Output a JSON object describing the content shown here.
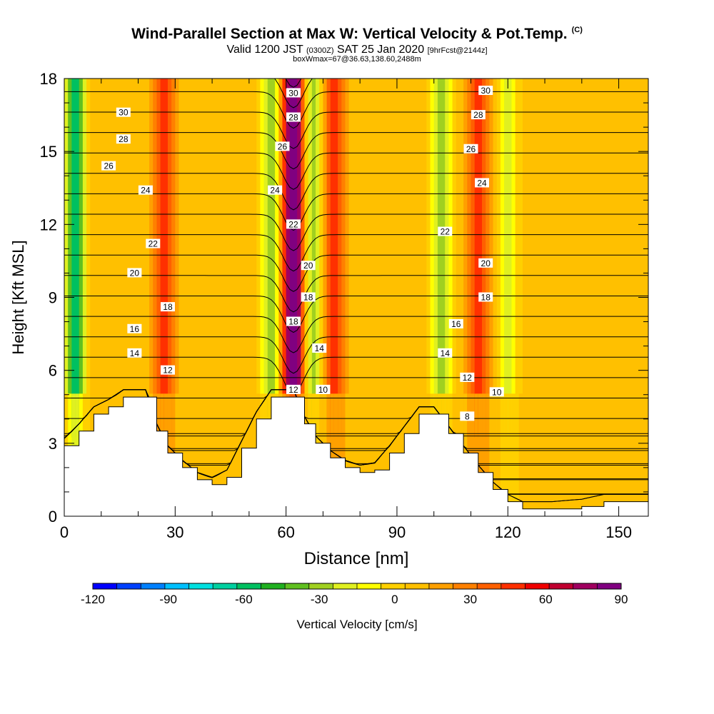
{
  "title": "Wind-Parallel Section at Max W: Vertical Velocity & Pot.Temp.",
  "title_mark": "(C)",
  "subtitle_main_a": "Valid 1200 JST",
  "subtitle_small_a": "(0300Z)",
  "subtitle_main_b": "SAT 25 Jan 2020",
  "subtitle_small_b": "[9hrFcst@2144z]",
  "subtitle2": "boxWmax=67@36.63,138.60,2488m",
  "chart_data": {
    "type": "heatmap",
    "xlabel": "Distance [nm]",
    "ylabel": "Height [Kft MSL]",
    "xlim": [
      0,
      158
    ],
    "ylim": [
      0,
      18
    ],
    "x_ticks": [
      0,
      30,
      60,
      90,
      120,
      150
    ],
    "y_ticks": [
      0,
      3,
      6,
      9,
      12,
      15,
      18
    ],
    "colorbar": {
      "label": "Vertical Velocity [cm/s]",
      "min": -120,
      "max": 90,
      "step": 10,
      "tick_values": [
        -120,
        -90,
        -60,
        -30,
        0,
        30,
        60,
        90
      ],
      "colors": [
        "#0000ff",
        "#0040ff",
        "#0080ff",
        "#00c0ff",
        "#00e0e0",
        "#00d0a0",
        "#00c060",
        "#20b020",
        "#60c020",
        "#a0d020",
        "#e0f020",
        "#ffff00",
        "#ffd000",
        "#ffc000",
        "#ffa000",
        "#ff8000",
        "#ff6000",
        "#ff3000",
        "#f00000",
        "#c00030",
        "#a00060",
        "#800080"
      ]
    },
    "terrain_kft": [
      [
        0,
        2.9
      ],
      [
        4,
        3.5
      ],
      [
        8,
        4.2
      ],
      [
        12,
        4.5
      ],
      [
        16,
        4.9
      ],
      [
        22,
        4.9
      ],
      [
        25,
        3.5
      ],
      [
        28,
        2.6
      ],
      [
        32,
        2.0
      ],
      [
        36,
        1.5
      ],
      [
        40,
        1.3
      ],
      [
        44,
        1.6
      ],
      [
        48,
        2.8
      ],
      [
        52,
        4.0
      ],
      [
        56,
        4.9
      ],
      [
        62,
        4.9
      ],
      [
        65,
        3.8
      ],
      [
        68,
        3.0
      ],
      [
        72,
        2.4
      ],
      [
        76,
        2.0
      ],
      [
        80,
        1.8
      ],
      [
        84,
        1.9
      ],
      [
        88,
        2.6
      ],
      [
        92,
        3.4
      ],
      [
        96,
        4.2
      ],
      [
        100,
        4.2
      ],
      [
        104,
        3.4
      ],
      [
        108,
        2.6
      ],
      [
        112,
        1.8
      ],
      [
        116,
        1.1
      ],
      [
        120,
        0.6
      ],
      [
        124,
        0.3
      ],
      [
        132,
        0.3
      ],
      [
        140,
        0.4
      ],
      [
        146,
        0.6
      ],
      [
        158,
        0.6
      ]
    ],
    "updraft_cores": [
      {
        "x": 27,
        "strength_cms": 40
      },
      {
        "x": 62,
        "strength_cms": 90
      },
      {
        "x": 73,
        "strength_cms": 40
      },
      {
        "x": 112,
        "strength_cms": 40
      }
    ],
    "downdraft_cores": [
      {
        "x": 3,
        "strength_cms": -70
      },
      {
        "x": 56,
        "strength_cms": -40
      },
      {
        "x": 67,
        "strength_cms": -45
      },
      {
        "x": 102,
        "strength_cms": -35
      },
      {
        "x": 120,
        "strength_cms": -30
      }
    ],
    "contour_levels": [
      8,
      10,
      12,
      14,
      16,
      18,
      20,
      22,
      24,
      26,
      28,
      30
    ],
    "contour_labels": [
      {
        "text": "30",
        "x": 16,
        "y": 16.6
      },
      {
        "text": "28",
        "x": 16,
        "y": 15.5
      },
      {
        "text": "26",
        "x": 12,
        "y": 14.4
      },
      {
        "text": "24",
        "x": 22,
        "y": 13.4
      },
      {
        "text": "22",
        "x": 24,
        "y": 11.2
      },
      {
        "text": "20",
        "x": 19,
        "y": 10.0
      },
      {
        "text": "18",
        "x": 28,
        "y": 8.6
      },
      {
        "text": "16",
        "x": 19,
        "y": 7.7
      },
      {
        "text": "14",
        "x": 19,
        "y": 6.7
      },
      {
        "text": "12",
        "x": 28,
        "y": 6.0
      },
      {
        "text": "30",
        "x": 62,
        "y": 17.4
      },
      {
        "text": "28",
        "x": 62,
        "y": 16.4
      },
      {
        "text": "26",
        "x": 59,
        "y": 15.2
      },
      {
        "text": "24",
        "x": 57,
        "y": 13.4
      },
      {
        "text": "22",
        "x": 62,
        "y": 12.0
      },
      {
        "text": "20",
        "x": 66,
        "y": 10.3
      },
      {
        "text": "18",
        "x": 66,
        "y": 9.0
      },
      {
        "text": "18",
        "x": 62,
        "y": 8.0
      },
      {
        "text": "14",
        "x": 69,
        "y": 6.9
      },
      {
        "text": "12",
        "x": 62,
        "y": 5.2
      },
      {
        "text": "10",
        "x": 70,
        "y": 5.2
      },
      {
        "text": "30",
        "x": 114,
        "y": 17.5
      },
      {
        "text": "28",
        "x": 112,
        "y": 16.5
      },
      {
        "text": "26",
        "x": 110,
        "y": 15.1
      },
      {
        "text": "24",
        "x": 113,
        "y": 13.7
      },
      {
        "text": "22",
        "x": 103,
        "y": 11.7
      },
      {
        "text": "20",
        "x": 114,
        "y": 10.4
      },
      {
        "text": "18",
        "x": 114,
        "y": 9.0
      },
      {
        "text": "16",
        "x": 106,
        "y": 7.9
      },
      {
        "text": "14",
        "x": 103,
        "y": 6.7
      },
      {
        "text": "12",
        "x": 109,
        "y": 5.7
      },
      {
        "text": "10",
        "x": 117,
        "y": 5.1
      },
      {
        "text": "8",
        "x": 109,
        "y": 4.1
      }
    ]
  }
}
